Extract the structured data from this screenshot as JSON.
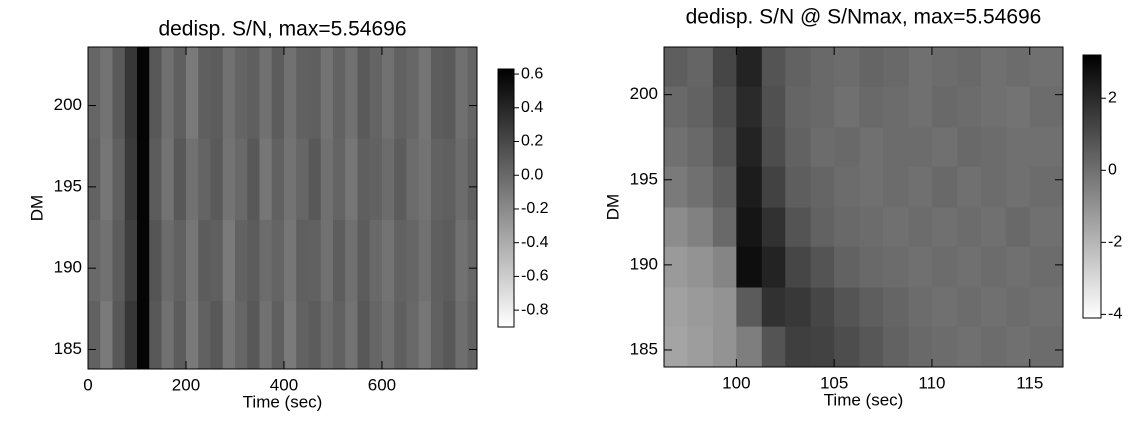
{
  "chart_data": [
    {
      "type": "heatmap",
      "title": "dedisp. S/N, max=5.54696",
      "xlabel": "Time (sec)",
      "ylabel": "DM",
      "xlim": [
        0,
        794
      ],
      "ylim": [
        183.8,
        203.6
      ],
      "xticks": [
        0,
        200,
        400,
        600
      ],
      "yticks": [
        185,
        190,
        195,
        200
      ],
      "clim": [
        -0.9,
        0.63
      ],
      "cticks": [
        {
          "value": 0.6,
          "label": "0.6"
        },
        {
          "value": 0.4,
          "label": "0.4"
        },
        {
          "value": 0.2,
          "label": "0.2"
        },
        {
          "value": 0.0,
          "label": "0.0"
        },
        {
          "value": -0.2,
          "label": "-0.2"
        },
        {
          "value": -0.4,
          "label": "-0.4"
        },
        {
          "value": -0.6,
          "label": "-0.6"
        },
        {
          "value": -0.8,
          "label": "-0.8"
        }
      ],
      "x_edges": [
        0,
        25,
        50,
        75,
        100,
        125,
        150,
        175,
        200,
        225,
        250,
        275,
        300,
        325,
        350,
        375,
        400,
        425,
        450,
        475,
        500,
        525,
        550,
        575,
        600,
        625,
        650,
        675,
        700,
        725,
        750,
        775,
        800
      ],
      "y_edges": [
        183.8,
        188,
        193,
        198,
        203.6
      ],
      "z": [
        [
          0.05,
          -0.1,
          0.1,
          0.3,
          0.6,
          0.1,
          -0.05,
          0.08,
          -0.1,
          0.05,
          0.1,
          -0.08,
          0.02,
          0.1,
          -0.05,
          0.06,
          -0.1,
          0.04,
          0.08,
          -0.02,
          0.05,
          -0.06,
          0.1,
          0.02,
          -0.04,
          0.06,
          0.0,
          -0.08,
          0.05,
          0.1,
          -0.03,
          0.04
        ],
        [
          0.0,
          -0.05,
          0.08,
          0.25,
          0.6,
          0.12,
          -0.02,
          0.05,
          -0.08,
          0.08,
          0.06,
          -0.1,
          0.04,
          0.08,
          -0.02,
          0.03,
          -0.08,
          0.06,
          0.05,
          -0.05,
          0.07,
          -0.04,
          0.08,
          0.0,
          -0.06,
          0.04,
          0.02,
          -0.05,
          0.06,
          0.08,
          -0.05,
          0.02
        ],
        [
          0.04,
          -0.08,
          0.06,
          0.28,
          0.6,
          0.08,
          -0.06,
          0.1,
          -0.05,
          0.03,
          0.09,
          -0.06,
          0.0,
          0.1,
          -0.08,
          0.05,
          -0.06,
          0.02,
          0.1,
          -0.04,
          0.03,
          -0.08,
          0.06,
          0.04,
          -0.02,
          0.08,
          -0.02,
          -0.06,
          0.04,
          0.06,
          -0.02,
          0.06
        ],
        [
          0.02,
          -0.06,
          0.09,
          0.3,
          0.6,
          0.1,
          -0.04,
          0.06,
          -0.1,
          0.06,
          0.08,
          -0.05,
          0.03,
          0.06,
          -0.04,
          0.08,
          -0.05,
          0.05,
          0.06,
          -0.06,
          0.04,
          -0.05,
          0.09,
          0.03,
          -0.05,
          0.05,
          0.01,
          -0.07,
          0.07,
          0.09,
          -0.04,
          0.03
        ]
      ]
    },
    {
      "type": "heatmap",
      "title": "dedisp. S/N @ S/Nmax, max=5.54696",
      "xlabel": "Time (sec)",
      "ylabel": "DM",
      "xlim": [
        96.3,
        116.7
      ],
      "ylim": [
        184,
        202.8
      ],
      "xticks": [
        100,
        105,
        110,
        115
      ],
      "yticks": [
        185,
        190,
        195,
        200
      ],
      "clim": [
        -4.1,
        3.2
      ],
      "cticks": [
        2,
        0,
        -2,
        -4
      ],
      "x_edges": [
        96.3,
        97.5,
        98.8,
        100,
        101.3,
        102.5,
        103.8,
        105,
        106.3,
        107.5,
        108.8,
        110,
        111.3,
        112.5,
        113.8,
        115,
        116.7
      ],
      "y_edges": [
        184,
        186.4,
        188.7,
        191.1,
        193.4,
        195.8,
        198.1,
        200.5,
        202.8
      ],
      "z": [
        [
          -1.5,
          -1.3,
          -1.0,
          -0.4,
          0.8,
          1.4,
          1.3,
          1.0,
          0.7,
          0.4,
          0.2,
          0.1,
          0,
          0.1,
          0,
          0.1
        ],
        [
          -1.4,
          -1.2,
          -1.0,
          0.6,
          1.8,
          1.6,
          1.2,
          0.8,
          0.5,
          0.3,
          0.1,
          0,
          0.1,
          0,
          0.1,
          0
        ],
        [
          -1.2,
          -1.0,
          -0.6,
          2.8,
          2.2,
          1.2,
          0.8,
          0.4,
          0.2,
          0.1,
          0,
          0.1,
          0,
          0.1,
          0,
          0.1
        ],
        [
          -0.8,
          -0.5,
          0.2,
          2.6,
          1.8,
          0.8,
          0.4,
          0.2,
          0.1,
          0,
          0.1,
          0,
          0.1,
          0,
          0.2,
          0
        ],
        [
          -0.3,
          0,
          0.5,
          2.4,
          1.3,
          0.5,
          0.3,
          0.1,
          0,
          0.1,
          0,
          0.2,
          0,
          0.1,
          0,
          0.1
        ],
        [
          0,
          0.2,
          0.8,
          2.2,
          1.0,
          0.4,
          0.1,
          0.2,
          0,
          0.1,
          0.1,
          0,
          0.2,
          0.1,
          0,
          0
        ],
        [
          0.2,
          0.4,
          1.0,
          2.0,
          0.9,
          0.3,
          0.2,
          0,
          0.2,
          0.1,
          0,
          0.2,
          0.1,
          0,
          -0.1,
          0.1
        ],
        [
          0.5,
          0.3,
          1.2,
          2.2,
          0.8,
          0.4,
          0.2,
          0.1,
          0.3,
          0.2,
          0,
          0.1,
          0.2,
          0,
          0.1,
          0
        ]
      ]
    }
  ]
}
